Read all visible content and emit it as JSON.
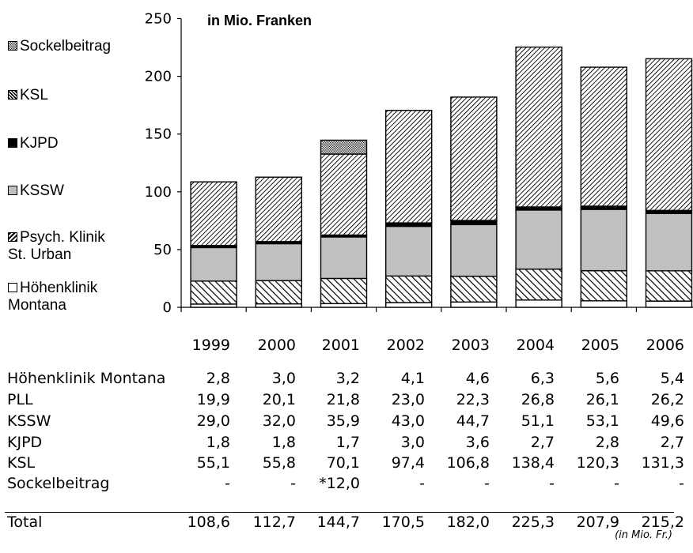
{
  "chart_data": {
    "type": "bar",
    "stacked": true,
    "title": "in Mio. Franken",
    "categories": [
      "1999",
      "2000",
      "2001",
      "2002",
      "2003",
      "2004",
      "2005",
      "2006"
    ],
    "ylim": [
      0,
      250
    ],
    "yticks": [
      0,
      50,
      100,
      150,
      200,
      250
    ],
    "series": [
      {
        "name": "Höhenklinik Montana",
        "pattern": "white",
        "values": [
          2.8,
          3.0,
          3.2,
          4.1,
          4.6,
          6.3,
          5.6,
          5.4
        ]
      },
      {
        "name": "Psych. Klinik St. Urban",
        "pattern": "diag-sparse",
        "values": [
          19.9,
          20.1,
          21.8,
          23.0,
          22.3,
          26.8,
          26.1,
          26.2
        ]
      },
      {
        "name": "KSSW",
        "pattern": "gray",
        "color": "#c0c0c0",
        "values": [
          29.0,
          32.0,
          35.9,
          43.0,
          44.7,
          51.1,
          53.1,
          49.6
        ]
      },
      {
        "name": "KJPD",
        "pattern": "black",
        "values": [
          1.8,
          1.8,
          1.7,
          3.0,
          3.6,
          2.7,
          2.8,
          2.7
        ]
      },
      {
        "name": "KSL",
        "pattern": "diag-dense",
        "values": [
          55.1,
          55.8,
          70.1,
          97.4,
          106.8,
          138.4,
          120.3,
          131.3
        ]
      },
      {
        "name": "Sockelbeitrag",
        "pattern": "checker",
        "values": [
          0,
          0,
          12.0,
          0,
          0,
          0,
          0,
          0
        ]
      }
    ],
    "legend_order": [
      "Sockelbeitrag",
      "KSL",
      "KJPD",
      "KSSW",
      "Psych. Klinik St. Urban",
      "Höhenklinik Montana"
    ],
    "legend_labels": {
      "Sockelbeitrag": [
        "Sockelbeitrag"
      ],
      "KSL": [
        "KSL"
      ],
      "KJPD": [
        "KJPD"
      ],
      "KSSW": [
        "KSSW"
      ],
      "Psych. Klinik St. Urban": [
        "Psych. Klinik",
        "St. Urban"
      ],
      "Höhenklinik Montana": [
        "Höhenklinik",
        "Montana"
      ]
    },
    "legend_placement": "left"
  },
  "table": {
    "years": [
      "1999",
      "2000",
      "2001",
      "2002",
      "2003",
      "2004",
      "2005",
      "2006"
    ],
    "rows": [
      {
        "label": "Höhenklinik Montana",
        "values": [
          "2,8",
          "3,0",
          "3,2",
          "4,1",
          "4,6",
          "6,3",
          "5,6",
          "5,4"
        ]
      },
      {
        "label": "PLL",
        "values": [
          "19,9",
          "20,1",
          "21,8",
          "23,0",
          "22,3",
          "26,8",
          "26,1",
          "26,2"
        ]
      },
      {
        "label": "KSSW",
        "values": [
          "29,0",
          "32,0",
          "35,9",
          "43,0",
          "44,7",
          "51,1",
          "53,1",
          "49,6"
        ]
      },
      {
        "label": "KJPD",
        "values": [
          "1,8",
          "1,8",
          "1,7",
          "3,0",
          "3,6",
          "2,7",
          "2,8",
          "2,7"
        ]
      },
      {
        "label": "KSL",
        "values": [
          "55,1",
          "55,8",
          "70,1",
          "97,4",
          "106,8",
          "138,4",
          "120,3",
          "131,3"
        ]
      },
      {
        "label": "Sockelbeitrag",
        "values": [
          "-",
          "-",
          "*12,0",
          "-",
          "-",
          "-",
          "-",
          "-"
        ]
      }
    ],
    "total": {
      "label": "Total",
      "values": [
        "108,6",
        "112,7",
        "144,7",
        "170,5",
        "182,0",
        "225,3",
        "207,9",
        "215,2"
      ]
    },
    "footnote": "(in Mio. Fr.)"
  }
}
